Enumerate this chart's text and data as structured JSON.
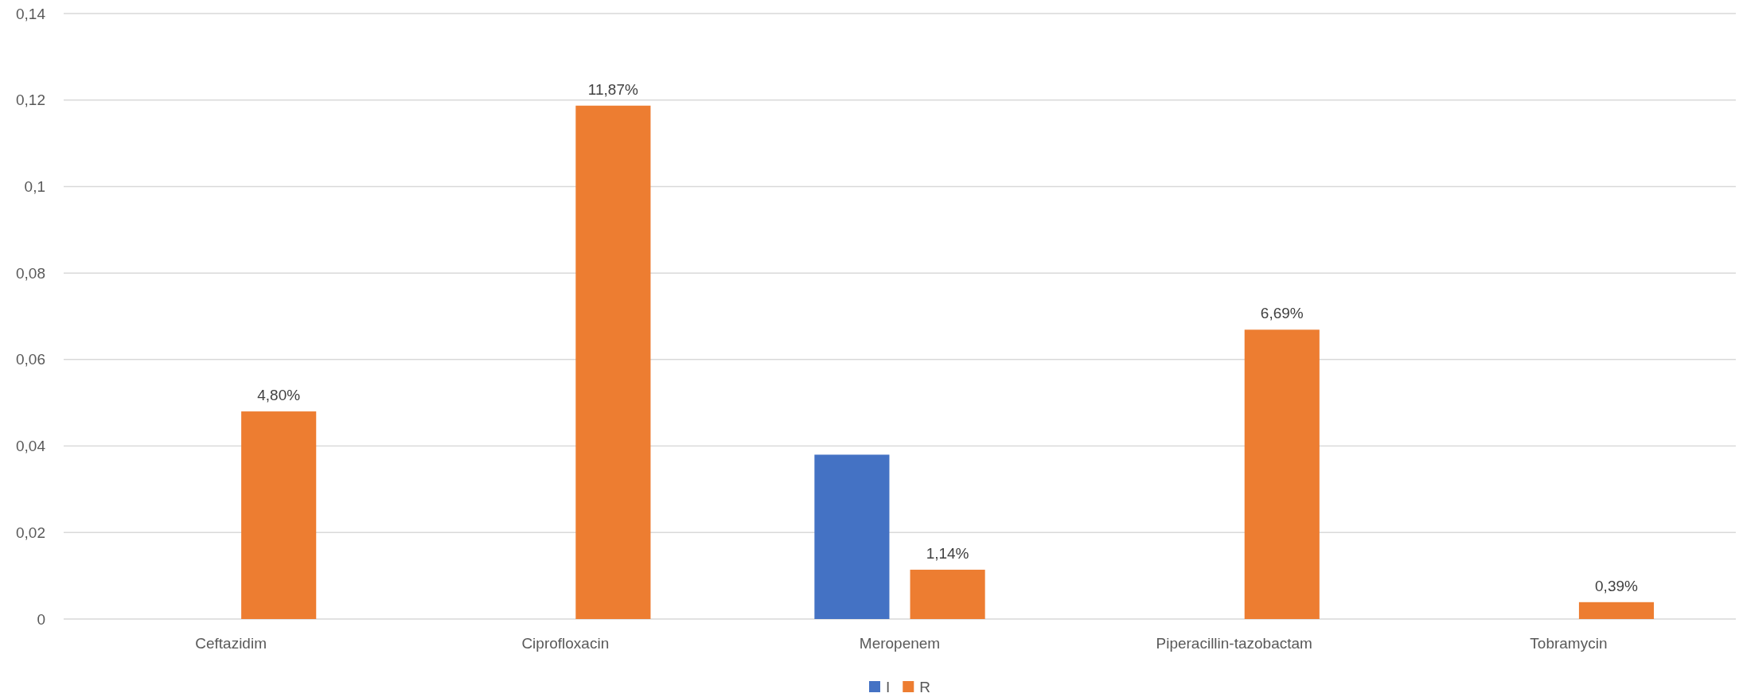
{
  "chart_data": {
    "type": "bar",
    "categories": [
      "Ceftazidim",
      "Ciprofloxacin",
      "Meropenem",
      "Piperacillin-tazobactam",
      "Tobramycin"
    ],
    "series": [
      {
        "name": "I",
        "color": "#4472c4",
        "values": [
          null,
          null,
          0.038,
          null,
          null
        ]
      },
      {
        "name": "R",
        "color": "#ed7d31",
        "values": [
          0.048,
          0.1187,
          0.0114,
          0.0669,
          0.0039
        ],
        "value_labels": [
          "4,80%",
          "11,87%",
          "1,14%",
          "6,69%",
          "0,39%"
        ]
      }
    ],
    "ylim": [
      0,
      0.14
    ],
    "yticks": [
      0,
      {
        "value": 0.02,
        "label": "0,02"
      },
      {
        "value": 0.04,
        "label": "0,04"
      },
      {
        "value": 0.06,
        "label": "0,06"
      },
      {
        "value": 0.08,
        "label": "0,08"
      },
      {
        "value": 0.1,
        "label": "0,1"
      },
      {
        "value": 0.12,
        "label": "0,12"
      },
      {
        "value": 0.14,
        "label": "0,14"
      }
    ],
    "grid": "y",
    "legend": "bottom"
  }
}
